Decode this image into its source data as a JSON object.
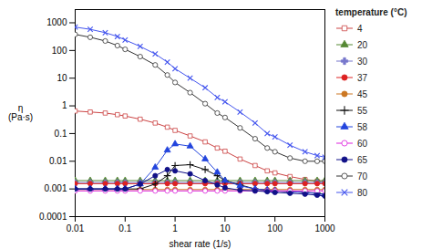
{
  "chart_data": {
    "type": "line",
    "x_label": "shear rate (1/s)",
    "y_label": "η\n(Pa·s)",
    "legend_title": "temperature (°C)",
    "log": true,
    "grid": false,
    "legend": "right",
    "xlim": [
      0.01,
      1000
    ],
    "ylim": [
      0.0001,
      3000
    ],
    "xticks": [
      0.01,
      0.1,
      1,
      10,
      100,
      1000
    ],
    "yticks": [
      0.0001,
      0.001,
      0.01,
      0.1,
      1,
      10,
      100,
      1000
    ],
    "x": [
      0.01,
      0.02,
      0.04,
      0.07,
      0.1,
      0.2,
      0.4,
      0.7,
      1.0,
      2.0,
      4.0,
      7.0,
      10,
      20,
      40,
      70,
      100,
      200,
      400,
      700,
      1000
    ],
    "series": [
      {
        "name": "4",
        "color": "#cc4444",
        "marker": "square_open",
        "values": [
          0.65,
          0.6,
          0.55,
          0.48,
          0.43,
          0.33,
          0.24,
          0.17,
          0.13,
          0.082,
          0.05,
          0.03,
          0.023,
          0.012,
          0.007,
          0.0045,
          0.0038,
          0.0028,
          0.0022,
          0.0019,
          0.0018
        ]
      },
      {
        "name": "20",
        "color": "#558833",
        "marker": "triangle",
        "values": [
          0.002,
          0.002,
          0.002,
          0.002,
          0.002,
          0.002,
          0.002,
          0.002,
          0.002,
          0.002,
          0.002,
          0.002,
          0.002,
          0.002,
          0.002,
          0.002,
          0.002,
          0.002,
          0.002,
          0.002,
          0.002
        ]
      },
      {
        "name": "30",
        "color": "#7777cc",
        "marker": "cross",
        "values": [
          0.0017,
          0.0017,
          0.0017,
          0.0017,
          0.0017,
          0.0017,
          0.0017,
          0.0017,
          0.0017,
          0.0017,
          0.0017,
          0.0017,
          0.0017,
          0.0017,
          0.0017,
          0.0017,
          0.0017,
          0.0017,
          0.0017,
          0.0017,
          0.0017
        ]
      },
      {
        "name": "37",
        "color": "#dd2222",
        "marker": "circle",
        "values": [
          0.00155,
          0.00155,
          0.00155,
          0.00155,
          0.00155,
          0.00155,
          0.00155,
          0.00155,
          0.00155,
          0.00155,
          0.00155,
          0.00155,
          0.00155,
          0.00155,
          0.00155,
          0.00155,
          0.00155,
          0.00155,
          0.00155,
          0.00155,
          0.00155
        ]
      },
      {
        "name": "45",
        "color": "#cc7722",
        "marker": "circle",
        "values": [
          0.00095,
          0.00095,
          0.00095,
          0.00095,
          0.00095,
          0.00095,
          0.00095,
          0.00095,
          0.00095,
          0.00095,
          0.00095,
          0.00095,
          0.00095,
          0.00095,
          0.00095,
          0.00095,
          0.00095,
          0.00095,
          0.00095,
          0.00095,
          0.00095
        ]
      },
      {
        "name": "55",
        "color": "#111111",
        "marker": "plus",
        "values": [
          0.001,
          0.001,
          0.001,
          0.001,
          0.001,
          0.001,
          0.0015,
          0.003,
          0.007,
          0.0075,
          0.005,
          0.003,
          0.002,
          0.0014,
          0.001,
          0.0009,
          0.00085,
          0.0008,
          0.00075,
          0.0007,
          0.00065
        ]
      },
      {
        "name": "58",
        "color": "#2244dd",
        "marker": "triangle",
        "values": [
          0.001,
          0.001,
          0.001,
          0.001,
          0.001,
          0.0015,
          0.006,
          0.025,
          0.042,
          0.035,
          0.012,
          0.004,
          0.002,
          0.0013,
          0.001,
          0.0009,
          0.00085,
          0.0008,
          0.00075,
          0.00068,
          0.00062
        ]
      },
      {
        "name": "60",
        "color": "#dd22dd",
        "marker": "circle_open",
        "values": [
          0.00085,
          0.00085,
          0.00085,
          0.00085,
          0.00085,
          0.00085,
          0.00085,
          0.00085,
          0.00085,
          0.00085,
          0.00085,
          0.00085,
          0.00085,
          0.00085,
          0.00085,
          0.00085,
          0.00085,
          0.00085,
          0.00085,
          0.00085,
          0.00085
        ]
      },
      {
        "name": "65",
        "color": "#111188",
        "marker": "circle",
        "values": [
          0.001,
          0.001,
          0.001,
          0.001,
          0.001,
          0.0015,
          0.003,
          0.005,
          0.0045,
          0.0035,
          0.002,
          0.0014,
          0.0011,
          0.0009,
          0.00085,
          0.0008,
          0.00075,
          0.0007,
          0.00065,
          0.0006,
          0.00055
        ]
      },
      {
        "name": "70",
        "color": "#333333",
        "marker": "circle_open",
        "values": [
          380,
          300,
          220,
          150,
          110,
          60,
          30,
          13,
          7,
          3,
          1.2,
          0.55,
          0.38,
          0.16,
          0.065,
          0.03,
          0.022,
          0.013,
          0.01,
          0.01,
          0.01
        ]
      },
      {
        "name": "80",
        "color": "#4455ee",
        "marker": "times",
        "values": [
          700,
          580,
          440,
          320,
          240,
          140,
          75,
          38,
          22,
          10,
          4.5,
          2.0,
          1.4,
          0.6,
          0.24,
          0.1,
          0.075,
          0.038,
          0.022,
          0.016,
          0.014
        ]
      }
    ]
  }
}
